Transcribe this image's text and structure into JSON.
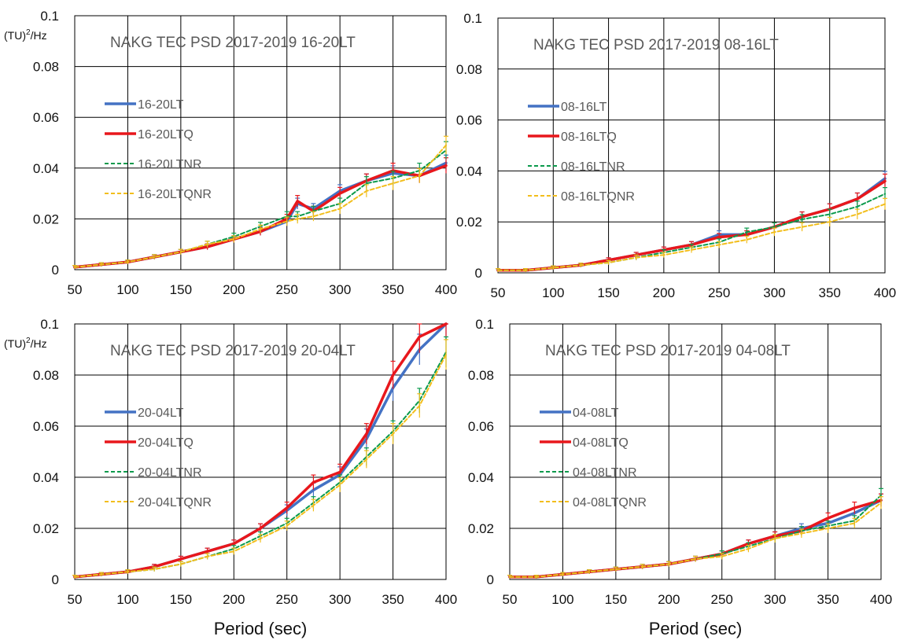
{
  "chart_data": [
    {
      "type": "line",
      "title": "NAKG TEC PSD 2017-2019 16-20LT",
      "ylabel": "(TU)",
      "ylabel_sup": "2",
      "ylabel_suffix": "/Hz",
      "xlabel": "",
      "x": [
        50,
        75,
        100,
        125,
        150,
        175,
        200,
        225,
        250,
        260,
        275,
        300,
        325,
        350,
        375,
        400
      ],
      "xlim": [
        50,
        400
      ],
      "ylim": [
        0,
        0.1
      ],
      "xticks": [
        "50",
        "100",
        "150",
        "200",
        "250",
        "300",
        "350",
        "400"
      ],
      "yticks": [
        "0",
        "0.02",
        "0.04",
        "0.06",
        "0.08",
        "0.1"
      ],
      "grid": true,
      "legend_position": "left",
      "series": [
        {
          "name": "16-20LT",
          "values": [
            0.001,
            0.002,
            0.003,
            0.005,
            0.007,
            0.009,
            0.012,
            0.015,
            0.019,
            0.026,
            0.024,
            0.031,
            0.035,
            0.038,
            0.037,
            0.042
          ]
        },
        {
          "name": "16-20LTQ",
          "values": [
            0.001,
            0.002,
            0.003,
            0.005,
            0.007,
            0.009,
            0.012,
            0.015,
            0.02,
            0.027,
            0.023,
            0.03,
            0.035,
            0.039,
            0.037,
            0.041
          ]
        },
        {
          "name": "16-20LTNR",
          "values": [
            0.001,
            0.002,
            0.003,
            0.005,
            0.007,
            0.01,
            0.013,
            0.017,
            0.021,
            0.021,
            0.023,
            0.026,
            0.034,
            0.036,
            0.039,
            0.047
          ]
        },
        {
          "name": "16-20LTQNR",
          "values": [
            0.001,
            0.002,
            0.003,
            0.005,
            0.007,
            0.01,
            0.012,
            0.016,
            0.019,
            0.02,
            0.021,
            0.024,
            0.031,
            0.034,
            0.037,
            0.049
          ]
        }
      ]
    },
    {
      "type": "line",
      "title": "NAKG TEC PSD 2017-2019 08-16LT",
      "ylabel": "",
      "ylabel_sup": "",
      "ylabel_suffix": "",
      "xlabel": "",
      "x": [
        50,
        75,
        100,
        125,
        150,
        175,
        200,
        225,
        250,
        275,
        300,
        325,
        350,
        375,
        400
      ],
      "xlim": [
        50,
        400
      ],
      "ylim": [
        0,
        0.1
      ],
      "xticks": [
        "50",
        "100",
        "150",
        "200",
        "250",
        "300",
        "350",
        "400"
      ],
      "yticks": [
        "0",
        "0.02",
        "0.04",
        "0.06",
        "0.08",
        "0.1"
      ],
      "grid": true,
      "legend_position": "left",
      "series": [
        {
          "name": "08-16LT",
          "values": [
            0.001,
            0.001,
            0.002,
            0.003,
            0.005,
            0.007,
            0.009,
            0.011,
            0.015,
            0.015,
            0.018,
            0.022,
            0.025,
            0.029,
            0.037
          ]
        },
        {
          "name": "08-16LTQ",
          "values": [
            0.001,
            0.001,
            0.002,
            0.003,
            0.005,
            0.007,
            0.009,
            0.011,
            0.014,
            0.015,
            0.018,
            0.022,
            0.025,
            0.029,
            0.036
          ]
        },
        {
          "name": "08-16LTNR",
          "values": [
            0.001,
            0.001,
            0.002,
            0.003,
            0.004,
            0.006,
            0.008,
            0.01,
            0.012,
            0.016,
            0.018,
            0.021,
            0.023,
            0.026,
            0.031
          ]
        },
        {
          "name": "08-16LTQNR",
          "values": [
            0.001,
            0.001,
            0.002,
            0.003,
            0.004,
            0.006,
            0.007,
            0.009,
            0.011,
            0.013,
            0.016,
            0.018,
            0.02,
            0.023,
            0.027
          ]
        }
      ]
    },
    {
      "type": "line",
      "title": "NAKG TEC PSD 2017-2019 20-04LT",
      "ylabel": "(TU)",
      "ylabel_sup": "2",
      "ylabel_suffix": "/Hz",
      "xlabel": "Period (sec)",
      "x": [
        50,
        75,
        100,
        125,
        150,
        175,
        200,
        225,
        250,
        275,
        300,
        325,
        350,
        375,
        400
      ],
      "xlim": [
        50,
        400
      ],
      "ylim": [
        0,
        0.1
      ],
      "xticks": [
        "50",
        "100",
        "150",
        "200",
        "250",
        "300",
        "350",
        "400"
      ],
      "yticks": [
        "0",
        "0.02",
        "0.04",
        "0.06",
        "0.08",
        "0.1"
      ],
      "grid": true,
      "legend_position": "left",
      "series": [
        {
          "name": "20-04LT",
          "values": [
            0.001,
            0.002,
            0.003,
            0.005,
            0.008,
            0.011,
            0.014,
            0.02,
            0.027,
            0.035,
            0.041,
            0.055,
            0.075,
            0.09,
            0.1
          ]
        },
        {
          "name": "20-04LTQ",
          "values": [
            0.001,
            0.002,
            0.003,
            0.005,
            0.008,
            0.011,
            0.014,
            0.02,
            0.028,
            0.038,
            0.042,
            0.057,
            0.08,
            0.095,
            0.1
          ]
        },
        {
          "name": "20-04LTNR",
          "values": [
            0.001,
            0.002,
            0.003,
            0.004,
            0.006,
            0.009,
            0.012,
            0.017,
            0.022,
            0.03,
            0.038,
            0.048,
            0.058,
            0.07,
            0.089
          ]
        },
        {
          "name": "20-04LTQNR",
          "values": [
            0.001,
            0.002,
            0.003,
            0.004,
            0.006,
            0.009,
            0.011,
            0.016,
            0.021,
            0.029,
            0.037,
            0.047,
            0.057,
            0.068,
            0.088
          ]
        }
      ]
    },
    {
      "type": "line",
      "title": "NAKG TEC PSD 2017-2019 04-08LT",
      "ylabel": "",
      "ylabel_sup": "",
      "ylabel_suffix": "",
      "xlabel": "Period (sec)",
      "x": [
        50,
        75,
        100,
        125,
        150,
        175,
        200,
        225,
        250,
        275,
        300,
        325,
        350,
        375,
        400
      ],
      "xlim": [
        50,
        400
      ],
      "ylim": [
        0,
        0.1
      ],
      "xticks": [
        "50",
        "100",
        "150",
        "200",
        "250",
        "300",
        "350",
        "400"
      ],
      "yticks": [
        "0",
        "0.02",
        "0.04",
        "0.06",
        "0.08",
        "0.1"
      ],
      "grid": true,
      "legend_position": "left",
      "series": [
        {
          "name": "04-08LT",
          "values": [
            0.001,
            0.001,
            0.002,
            0.003,
            0.004,
            0.005,
            0.006,
            0.008,
            0.01,
            0.014,
            0.017,
            0.02,
            0.022,
            0.026,
            0.031
          ]
        },
        {
          "name": "04-08LTQ",
          "values": [
            0.001,
            0.001,
            0.002,
            0.003,
            0.004,
            0.005,
            0.006,
            0.008,
            0.01,
            0.014,
            0.017,
            0.019,
            0.024,
            0.028,
            0.031
          ]
        },
        {
          "name": "04-08LTNR",
          "values": [
            0.001,
            0.001,
            0.002,
            0.003,
            0.004,
            0.005,
            0.006,
            0.008,
            0.01,
            0.013,
            0.016,
            0.019,
            0.021,
            0.023,
            0.033
          ]
        },
        {
          "name": "04-08LTQNR",
          "values": [
            0.001,
            0.001,
            0.002,
            0.003,
            0.004,
            0.005,
            0.006,
            0.008,
            0.009,
            0.012,
            0.016,
            0.018,
            0.02,
            0.022,
            0.03
          ]
        }
      ]
    }
  ],
  "colors": {
    "series": [
      "#4472C4",
      "#E8171C",
      "#0B9A4C",
      "#F2BE1C"
    ],
    "grid": "#000000",
    "title": "#595959",
    "legend_text": "#595959"
  }
}
